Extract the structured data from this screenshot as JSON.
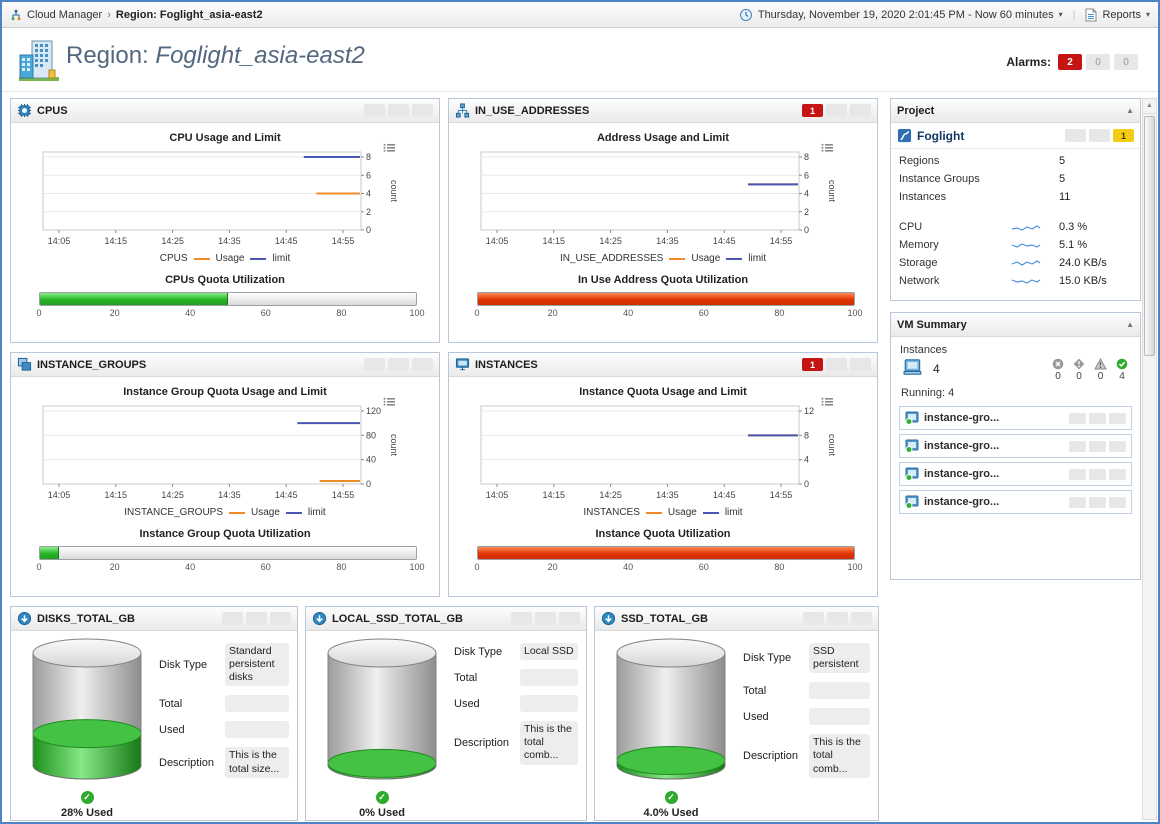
{
  "topbar": {
    "breadcrumb": {
      "app": "Cloud Manager",
      "current": "Region: Foglight_asia-east2"
    },
    "time_range": "Thursday, November 19, 2020 2:01:45 PM - Now 60 minutes",
    "reports": "Reports"
  },
  "header": {
    "title_prefix": "Region:",
    "title_name": "Foglight_asia-east2",
    "alarms_label": "Alarms:",
    "alarm_badges": [
      {
        "text": "2",
        "type": "red"
      },
      {
        "text": "0",
        "type": "gray"
      },
      {
        "text": "0",
        "type": "gray"
      }
    ]
  },
  "panels": {
    "cpus": {
      "title": "CPUS",
      "badges": [
        {
          "text": "",
          "type": "gray"
        },
        {
          "text": "",
          "type": "gray"
        },
        {
          "text": "",
          "type": "gray"
        }
      ],
      "chart": {
        "type": "line",
        "title": "CPU Usage and Limit",
        "ylabel": "count",
        "y_max": 8,
        "y_ticks": [
          0,
          2,
          4,
          6,
          8
        ],
        "x_ticks": [
          "14:05",
          "14:15",
          "14:25",
          "14:35",
          "14:45",
          "14:55"
        ],
        "legend_name": "CPUS",
        "series": [
          {
            "name": "Usage",
            "color": "#f08c28",
            "start": 0.86,
            "value": 4
          },
          {
            "name": "limit",
            "color": "#4a55b4",
            "start": 0.82,
            "value": 8
          }
        ]
      },
      "quota": {
        "title": "CPUs Quota Utilization",
        "value": 50,
        "color": "green",
        "ticks": [
          "0",
          "20",
          "40",
          "60",
          "80",
          "100"
        ]
      }
    },
    "in_use_addresses": {
      "title": "IN_USE_ADDRESSES",
      "badges": [
        {
          "text": "1",
          "type": "red"
        },
        {
          "text": "",
          "type": "gray"
        },
        {
          "text": "",
          "type": "gray"
        }
      ],
      "chart": {
        "type": "line",
        "title": "Address Usage and Limit",
        "ylabel": "count",
        "y_max": 8,
        "y_ticks": [
          0,
          2,
          4,
          6,
          8
        ],
        "x_ticks": [
          "14:05",
          "14:15",
          "14:25",
          "14:35",
          "14:45",
          "14:55"
        ],
        "legend_name": "IN_USE_ADDRESSES",
        "series": [
          {
            "name": "Usage",
            "color": "#f08c28",
            "start": 0.84,
            "value": 5
          },
          {
            "name": "limit",
            "color": "#4a55b4",
            "start": 0.84,
            "value": 5
          }
        ]
      },
      "quota": {
        "title": "In Use Address Quota Utilization",
        "value": 100,
        "color": "red",
        "ticks": [
          "0",
          "20",
          "40",
          "60",
          "80",
          "100"
        ]
      }
    },
    "instance_groups": {
      "title": "INSTANCE_GROUPS",
      "badges": [
        {
          "text": "",
          "type": "gray"
        },
        {
          "text": "",
          "type": "gray"
        },
        {
          "text": "",
          "type": "gray"
        }
      ],
      "chart": {
        "type": "line",
        "title": "Instance Group Quota Usage and Limit",
        "ylabel": "count",
        "y_max": 120,
        "y_ticks": [
          0,
          40,
          80,
          120
        ],
        "x_ticks": [
          "14:05",
          "14:15",
          "14:25",
          "14:35",
          "14:45",
          "14:55"
        ],
        "legend_name": "INSTANCE_GROUPS",
        "series": [
          {
            "name": "Usage",
            "color": "#f08c28",
            "start": 0.87,
            "value": 5
          },
          {
            "name": "limit",
            "color": "#4a55b4",
            "start": 0.8,
            "value": 100
          }
        ]
      },
      "quota": {
        "title": "Instance Group Quota Utilization",
        "value": 5,
        "color": "green",
        "ticks": [
          "0",
          "20",
          "40",
          "60",
          "80",
          "100"
        ]
      }
    },
    "instances": {
      "title": "INSTANCES",
      "badges": [
        {
          "text": "1",
          "type": "red"
        },
        {
          "text": "",
          "type": "gray"
        },
        {
          "text": "",
          "type": "gray"
        }
      ],
      "chart": {
        "type": "line",
        "title": "Instance Quota Usage and Limit",
        "ylabel": "count",
        "y_max": 12,
        "y_ticks": [
          0,
          4,
          8,
          12
        ],
        "x_ticks": [
          "14:05",
          "14:15",
          "14:25",
          "14:35",
          "14:45",
          "14:55"
        ],
        "legend_name": "INSTANCES",
        "series": [
          {
            "name": "Usage",
            "color": "#f08c28",
            "start": 0.84,
            "value": 8
          },
          {
            "name": "limit",
            "color": "#4a55b4",
            "start": 0.84,
            "value": 8
          }
        ]
      },
      "quota": {
        "title": "Instance Quota Utilization",
        "value": 100,
        "color": "red",
        "ticks": [
          "0",
          "20",
          "40",
          "60",
          "80",
          "100"
        ]
      }
    },
    "project": {
      "title": "Project",
      "name": "Foglight",
      "badges": [
        {
          "text": "",
          "type": "gray"
        },
        {
          "text": "",
          "type": "gray"
        },
        {
          "text": "1",
          "type": "yellow"
        }
      ],
      "counts": [
        {
          "label": "Regions",
          "value": "5"
        },
        {
          "label": "Instance Groups",
          "value": "5"
        },
        {
          "label": "Instances",
          "value": "11"
        }
      ],
      "metrics": [
        {
          "label": "CPU",
          "value": "0.3 %"
        },
        {
          "label": "Memory",
          "value": "5.1 %"
        },
        {
          "label": "Storage",
          "value": "24.0 KB/s"
        },
        {
          "label": "Network",
          "value": "15.0 KB/s"
        }
      ]
    },
    "vm_summary": {
      "title": "VM Summary",
      "instances_label": "Instances",
      "instance_count": "4",
      "statuses": [
        {
          "state": "fatal",
          "count": "0"
        },
        {
          "state": "critical",
          "count": "0"
        },
        {
          "state": "warning",
          "count": "0"
        },
        {
          "state": "normal",
          "count": "4"
        }
      ],
      "running_label": "Running: 4",
      "items": [
        {
          "name": "instance-gro...",
          "badges": [
            "",
            "",
            ""
          ]
        },
        {
          "name": "instance-gro...",
          "badges": [
            "",
            "",
            ""
          ]
        },
        {
          "name": "instance-gro...",
          "badges": [
            "",
            "",
            ""
          ]
        },
        {
          "name": "instance-gro...",
          "badges": [
            "",
            "",
            ""
          ]
        }
      ]
    },
    "disks": [
      {
        "title": "DISKS_TOTAL_GB",
        "badges": [
          {
            "text": "",
            "type": "gray"
          },
          {
            "text": "",
            "type": "gray"
          },
          {
            "text": "",
            "type": "gray"
          }
        ],
        "fields": [
          {
            "label": "Disk Type",
            "value": "Standard persistent disks"
          },
          {
            "label": "Total",
            "value": ""
          },
          {
            "label": "Used",
            "value": ""
          },
          {
            "label": "Description",
            "value": "This is the total size..."
          }
        ],
        "used_pct": 28,
        "used_label": "28% Used"
      },
      {
        "title": "LOCAL_SSD_TOTAL_GB",
        "badges": [
          {
            "text": "",
            "type": "gray"
          },
          {
            "text": "",
            "type": "gray"
          },
          {
            "text": "",
            "type": "gray"
          }
        ],
        "fields": [
          {
            "label": "Disk Type",
            "value": "Local SSD"
          },
          {
            "label": "Total",
            "value": ""
          },
          {
            "label": "Used",
            "value": ""
          },
          {
            "label": "Description",
            "value": "This is the total comb..."
          }
        ],
        "used_pct": 0,
        "used_label": "0% Used"
      },
      {
        "title": "SSD_TOTAL_GB",
        "badges": [
          {
            "text": "",
            "type": "gray"
          },
          {
            "text": "",
            "type": "gray"
          },
          {
            "text": "",
            "type": "gray"
          }
        ],
        "fields": [
          {
            "label": "Disk Type",
            "value": "SSD persistent"
          },
          {
            "label": "Total",
            "value": ""
          },
          {
            "label": "Used",
            "value": ""
          },
          {
            "label": "Description",
            "value": "This is the total comb..."
          }
        ],
        "used_pct": 4,
        "used_label": "4.0% Used"
      }
    ]
  }
}
